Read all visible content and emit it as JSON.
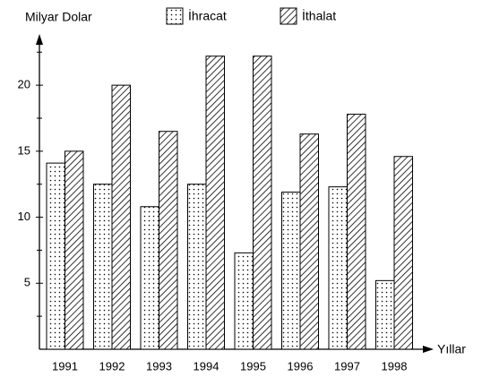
{
  "chart_data": {
    "type": "bar",
    "y_label": "Milyar Dolar",
    "x_label": "Yıllar",
    "categories": [
      "1991",
      "1992",
      "1993",
      "1994",
      "1995",
      "1996",
      "1997",
      "1998"
    ],
    "series": [
      {
        "name": "İhracat",
        "color": "#000000",
        "pattern": "dots",
        "values": [
          14.1,
          12.5,
          10.8,
          12.5,
          7.3,
          11.9,
          12.3,
          5.2
        ]
      },
      {
        "name": "İthalat",
        "color": "#000000",
        "pattern": "hatch",
        "values": [
          15.0,
          20.0,
          16.5,
          22.2,
          22.2,
          16.3,
          17.8,
          14.6
        ]
      }
    ],
    "ylim": [
      0,
      23.4
    ],
    "yticks": [
      5,
      10,
      15,
      20
    ],
    "minor_yticks": [
      2.5,
      7.5,
      12.5,
      17.5,
      22.5
    ],
    "legend": "top"
  }
}
